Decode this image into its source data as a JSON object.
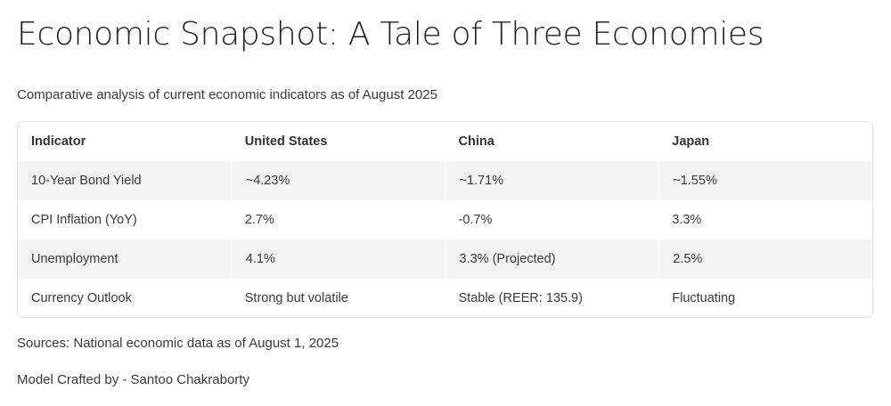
{
  "page": {
    "title": "Economic Snapshot: A Tale of Three Economies",
    "subtitle": "Comparative analysis of current economic indicators as of August 2025"
  },
  "table": {
    "headers": [
      "Indicator",
      "United States",
      "China",
      "Japan"
    ],
    "rows": [
      [
        "10-Year Bond Yield",
        "~4.23%",
        "~1.71%",
        "~1.55%"
      ],
      [
        "CPI Inflation (YoY)",
        "2.7%",
        "-0.7%",
        "3.3%"
      ],
      [
        "Unemployment",
        "4.1%",
        "3.3% (Projected)",
        "2.5%"
      ],
      [
        "Currency Outlook",
        "Strong but volatile",
        "Stable (REER: 135.9)",
        "Fluctuating"
      ]
    ]
  },
  "footer": {
    "sources": "Sources: National economic data as of August 1, 2025",
    "credit": "Model Crafted by - Santoo Chakraborty"
  },
  "colors": {
    "title": "#1f1f2a",
    "text": "#3a3a3a",
    "stripe": "#f4f4f4",
    "border": "#e4e4e4"
  }
}
